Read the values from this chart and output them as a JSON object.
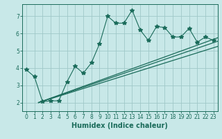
{
  "title": "",
  "xlabel": "Humidex (Indice chaleur)",
  "bg_color": "#c8e8e8",
  "grid_color": "#a0c8c8",
  "line_color": "#1a6b5a",
  "xlim": [
    -0.5,
    23.5
  ],
  "ylim": [
    1.5,
    7.7
  ],
  "yticks": [
    2,
    3,
    4,
    5,
    6,
    7
  ],
  "xticks": [
    0,
    1,
    2,
    3,
    4,
    5,
    6,
    7,
    8,
    9,
    10,
    11,
    12,
    13,
    14,
    15,
    16,
    17,
    18,
    19,
    20,
    21,
    22,
    23
  ],
  "data_x": [
    0,
    1,
    2,
    3,
    4,
    5,
    6,
    7,
    8,
    9,
    10,
    11,
    12,
    13,
    14,
    15,
    16,
    17,
    18,
    19,
    20,
    21,
    22,
    23
  ],
  "data_y": [
    3.9,
    3.5,
    2.05,
    2.1,
    2.1,
    3.2,
    4.1,
    3.7,
    4.3,
    5.4,
    7.0,
    6.6,
    6.6,
    7.35,
    6.2,
    5.6,
    6.4,
    6.35,
    5.8,
    5.8,
    6.3,
    5.5,
    5.8,
    5.6
  ],
  "trend1_x": [
    1.5,
    23.5
  ],
  "trend1_y": [
    2.0,
    5.55
  ],
  "trend2_x": [
    1.5,
    23.5
  ],
  "trend2_y": [
    2.0,
    5.25
  ],
  "trend3_x": [
    1.5,
    23.5
  ],
  "trend3_y": [
    2.0,
    5.75
  ],
  "tick_fontsize": 5.5,
  "xlabel_fontsize": 7
}
